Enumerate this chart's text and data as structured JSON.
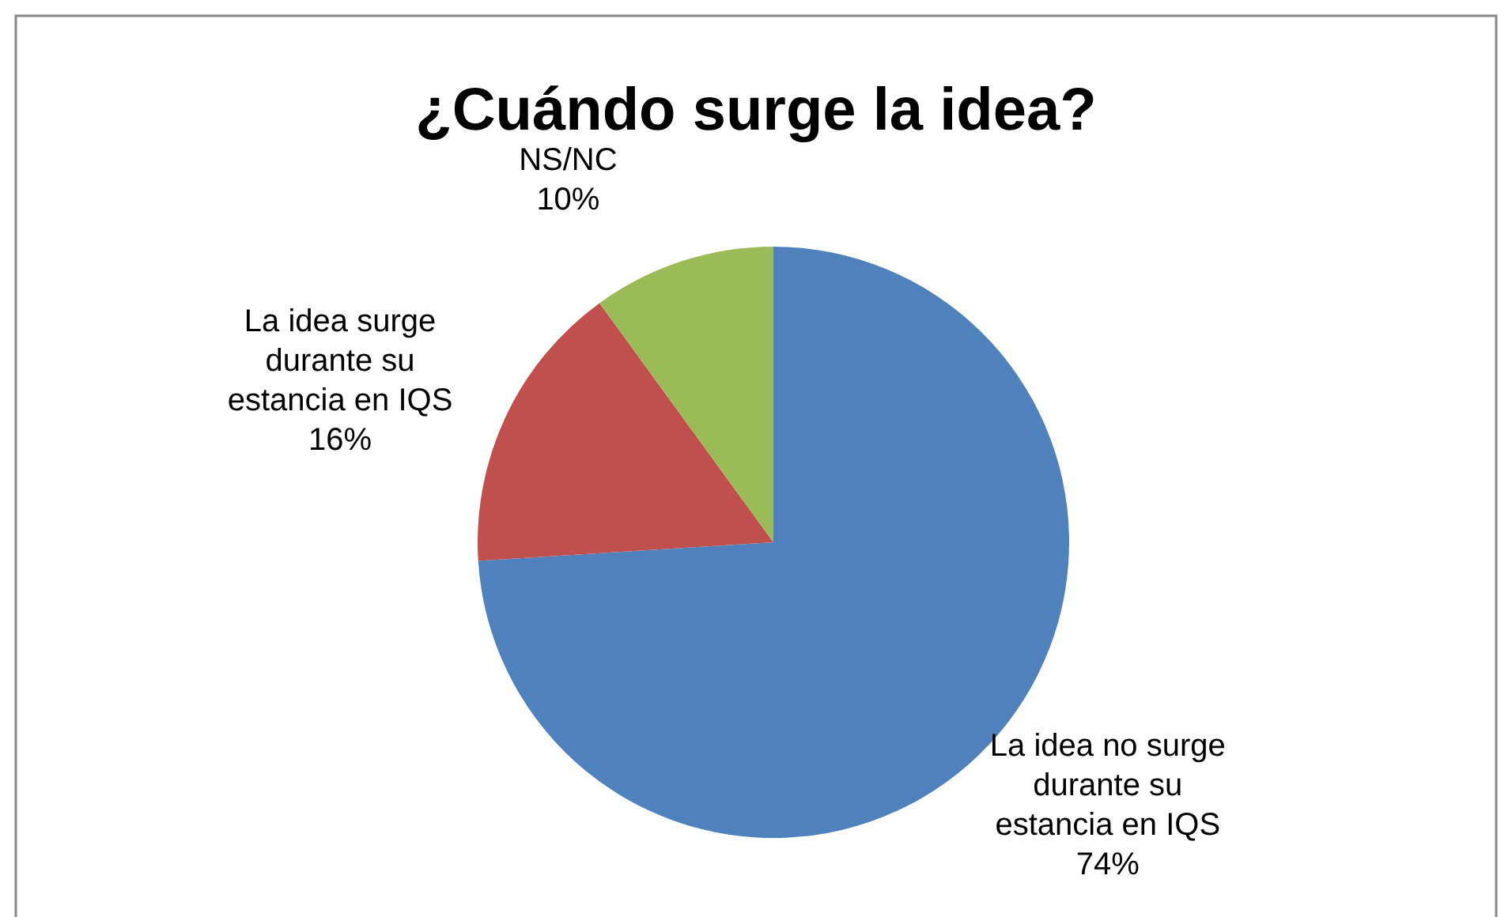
{
  "chart_data": {
    "type": "pie",
    "title": "¿Cuándo surge la idea?",
    "categories": [
      "La idea no surge durante su estancia en IQS",
      "La idea surge durante su estancia en IQS",
      "NS/NC"
    ],
    "values": [
      74,
      16,
      10
    ],
    "colors": [
      "#4f81bd",
      "#c0504d",
      "#9bbb59"
    ],
    "value_labels": [
      "74%",
      "16%",
      "10%"
    ]
  }
}
